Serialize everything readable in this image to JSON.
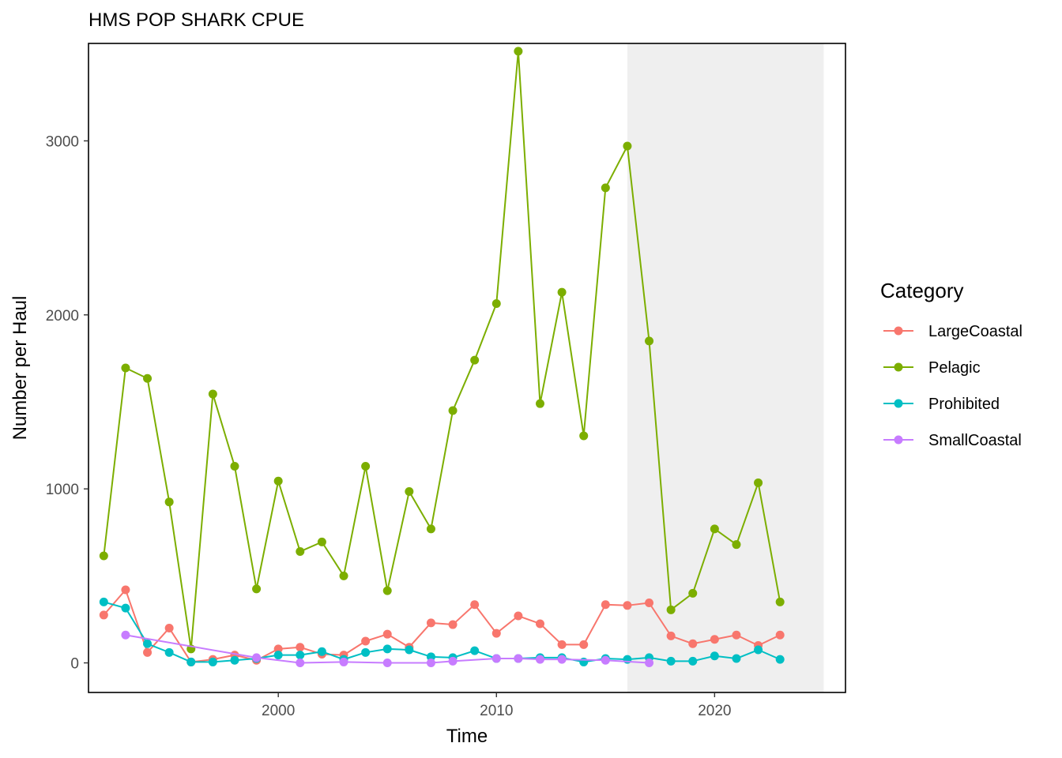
{
  "chart_data": {
    "type": "line",
    "title": "HMS POP SHARK CPUE",
    "xlabel": "Time",
    "ylabel": "Number per Haul",
    "xlim": [
      1991.3,
      2026.0
    ],
    "ylim": [
      -170,
      3560
    ],
    "x_ticks": [
      2000,
      2010,
      2020
    ],
    "y_ticks": [
      0,
      1000,
      2000,
      3000
    ],
    "x_tick_labels": [
      "2000",
      "2010",
      "2020"
    ],
    "y_tick_labels": [
      "0",
      "1000",
      "2000",
      "3000"
    ],
    "grid": false,
    "shaded_region": {
      "x_start": 2016,
      "x_end": 2025,
      "color": "#efefef"
    },
    "legend": {
      "title": "Category",
      "placement": "right"
    },
    "series": [
      {
        "name": "LargeCoastal",
        "color": "#F8766D",
        "x": [
          1992,
          1993,
          1994,
          1995,
          1996,
          1997,
          1998,
          1999,
          2000,
          2001,
          2002,
          2003,
          2004,
          2005,
          2006,
          2007,
          2008,
          2009,
          2010,
          2011,
          2012,
          2013,
          2014,
          2015,
          2016,
          2017,
          2018,
          2019,
          2020,
          2021,
          2022,
          2023
        ],
        "values": [
          275,
          420,
          60,
          200,
          5,
          20,
          45,
          15,
          80,
          90,
          50,
          45,
          125,
          165,
          90,
          230,
          220,
          335,
          170,
          270,
          225,
          105,
          105,
          335,
          330,
          345,
          155,
          110,
          135,
          160,
          100,
          160
        ]
      },
      {
        "name": "Pelagic",
        "color": "#7CAE00",
        "x": [
          1992,
          1993,
          1994,
          1995,
          1996,
          1997,
          1998,
          1999,
          2000,
          2001,
          2002,
          2003,
          2004,
          2005,
          2006,
          2007,
          2008,
          2009,
          2010,
          2011,
          2012,
          2013,
          2014,
          2015,
          2016,
          2017,
          2018,
          2019,
          2020,
          2021,
          2022,
          2023
        ],
        "values": [
          615,
          1695,
          1635,
          925,
          80,
          1545,
          1130,
          425,
          1045,
          640,
          695,
          500,
          1130,
          415,
          985,
          770,
          1450,
          1740,
          2065,
          3515,
          1490,
          2130,
          1305,
          2730,
          2970,
          1850,
          305,
          400,
          770,
          680,
          1035,
          350
        ]
      },
      {
        "name": "Prohibited",
        "color": "#00BFC4",
        "x": [
          1992,
          1993,
          1994,
          1995,
          1996,
          1997,
          1998,
          1999,
          2000,
          2001,
          2002,
          2003,
          2004,
          2005,
          2006,
          2007,
          2008,
          2009,
          2010,
          2011,
          2012,
          2013,
          2014,
          2015,
          2016,
          2017,
          2018,
          2019,
          2020,
          2021,
          2022,
          2023
        ],
        "values": [
          350,
          315,
          110,
          60,
          5,
          5,
          15,
          25,
          45,
          45,
          65,
          20,
          60,
          80,
          75,
          35,
          30,
          70,
          25,
          25,
          30,
          30,
          5,
          25,
          20,
          30,
          10,
          10,
          40,
          25,
          75,
          20
        ]
      },
      {
        "name": "SmallCoastal",
        "color": "#C77CFF",
        "x": [
          1993,
          1999,
          2001,
          2003,
          2005,
          2007,
          2008,
          2010,
          2011,
          2012,
          2013,
          2015,
          2017
        ],
        "values": [
          160,
          30,
          0,
          5,
          0,
          0,
          10,
          25,
          25,
          20,
          20,
          15,
          0
        ]
      }
    ]
  }
}
